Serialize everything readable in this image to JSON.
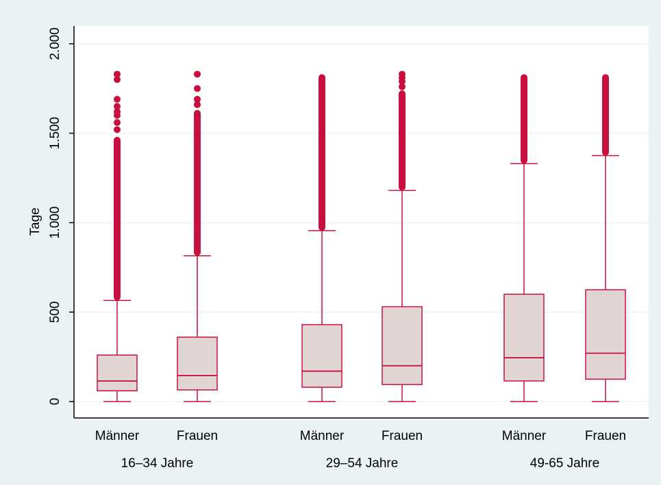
{
  "chart_data": {
    "type": "boxplot",
    "ylabel": "Tage",
    "ylim": [
      0,
      2000
    ],
    "yticks": [
      {
        "value": 0,
        "label": "0"
      },
      {
        "value": 500,
        "label": "500"
      },
      {
        "value": 1000,
        "label": "1.000"
      },
      {
        "value": 1500,
        "label": "1.500"
      },
      {
        "value": 2000,
        "label": "2.000"
      }
    ],
    "grid": true,
    "colors": {
      "plot_background": "#ffffff",
      "outer_background": "#eaf2f3",
      "box_fill": "#e0d5d3",
      "box_stroke": "#c8103e",
      "outlier": "#c8103e",
      "grid": "#eaf2f3",
      "axis": "#000000"
    },
    "groups": [
      {
        "label": "16–34 Jahre",
        "boxes": [
          {
            "category": "Männer",
            "min": 0,
            "q1": 60,
            "median": 115,
            "q3": 260,
            "whisker_high": 565,
            "outlier_band": [
              565,
              1480
            ],
            "outliers": [
              1520,
              1560,
              1600,
              1620,
              1650,
              1690,
              1800,
              1830
            ]
          },
          {
            "category": "Frauen",
            "min": 0,
            "q1": 65,
            "median": 145,
            "q3": 360,
            "whisker_high": 815,
            "outlier_band": [
              815,
              1630
            ],
            "outliers": [
              1660,
              1690,
              1750,
              1830
            ]
          }
        ]
      },
      {
        "label": "29–54 Jahre",
        "boxes": [
          {
            "category": "Männer",
            "min": 0,
            "q1": 80,
            "median": 170,
            "q3": 430,
            "whisker_high": 955,
            "outlier_band": [
              955,
              1830
            ],
            "outliers": []
          },
          {
            "category": "Frauen",
            "min": 0,
            "q1": 95,
            "median": 200,
            "q3": 530,
            "whisker_high": 1180,
            "outlier_band": [
              1180,
              1740
            ],
            "outliers": [
              1760,
              1790,
              1810,
              1830
            ]
          }
        ]
      },
      {
        "label": "49-65 Jahre",
        "boxes": [
          {
            "category": "Männer",
            "min": 0,
            "q1": 115,
            "median": 245,
            "q3": 600,
            "whisker_high": 1330,
            "outlier_band": [
              1330,
              1830
            ],
            "outliers": []
          },
          {
            "category": "Frauen",
            "min": 0,
            "q1": 125,
            "median": 270,
            "q3": 625,
            "whisker_high": 1375,
            "outlier_band": [
              1375,
              1830
            ],
            "outliers": []
          }
        ]
      }
    ]
  }
}
